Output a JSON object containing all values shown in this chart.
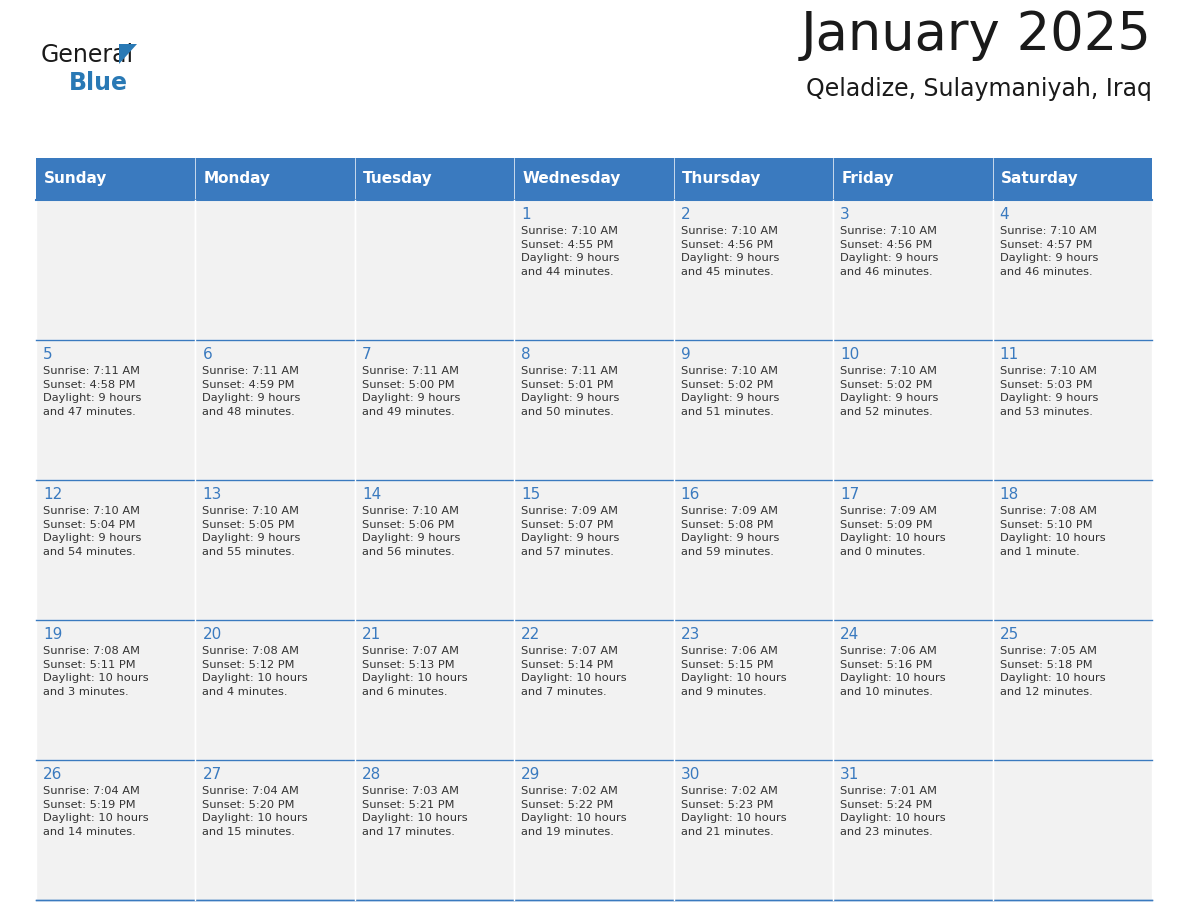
{
  "title": "January 2025",
  "subtitle": "Qeladize, Sulaymaniyah, Iraq",
  "header_color": "#3a7abf",
  "header_text_color": "#ffffff",
  "cell_bg_color": "#f2f2f2",
  "day_names": [
    "Sunday",
    "Monday",
    "Tuesday",
    "Wednesday",
    "Thursday",
    "Friday",
    "Saturday"
  ],
  "title_color": "#1a1a1a",
  "subtitle_color": "#1a1a1a",
  "text_color": "#333333",
  "day_num_color": "#3a7abf",
  "line_color": "#3a7abf",
  "logo_text_color": "#1a1a1a",
  "logo_blue_color": "#2979b5",
  "calendar": [
    [
      {
        "day": "",
        "info": ""
      },
      {
        "day": "",
        "info": ""
      },
      {
        "day": "",
        "info": ""
      },
      {
        "day": "1",
        "info": "Sunrise: 7:10 AM\nSunset: 4:55 PM\nDaylight: 9 hours\nand 44 minutes."
      },
      {
        "day": "2",
        "info": "Sunrise: 7:10 AM\nSunset: 4:56 PM\nDaylight: 9 hours\nand 45 minutes."
      },
      {
        "day": "3",
        "info": "Sunrise: 7:10 AM\nSunset: 4:56 PM\nDaylight: 9 hours\nand 46 minutes."
      },
      {
        "day": "4",
        "info": "Sunrise: 7:10 AM\nSunset: 4:57 PM\nDaylight: 9 hours\nand 46 minutes."
      }
    ],
    [
      {
        "day": "5",
        "info": "Sunrise: 7:11 AM\nSunset: 4:58 PM\nDaylight: 9 hours\nand 47 minutes."
      },
      {
        "day": "6",
        "info": "Sunrise: 7:11 AM\nSunset: 4:59 PM\nDaylight: 9 hours\nand 48 minutes."
      },
      {
        "day": "7",
        "info": "Sunrise: 7:11 AM\nSunset: 5:00 PM\nDaylight: 9 hours\nand 49 minutes."
      },
      {
        "day": "8",
        "info": "Sunrise: 7:11 AM\nSunset: 5:01 PM\nDaylight: 9 hours\nand 50 minutes."
      },
      {
        "day": "9",
        "info": "Sunrise: 7:10 AM\nSunset: 5:02 PM\nDaylight: 9 hours\nand 51 minutes."
      },
      {
        "day": "10",
        "info": "Sunrise: 7:10 AM\nSunset: 5:02 PM\nDaylight: 9 hours\nand 52 minutes."
      },
      {
        "day": "11",
        "info": "Sunrise: 7:10 AM\nSunset: 5:03 PM\nDaylight: 9 hours\nand 53 minutes."
      }
    ],
    [
      {
        "day": "12",
        "info": "Sunrise: 7:10 AM\nSunset: 5:04 PM\nDaylight: 9 hours\nand 54 minutes."
      },
      {
        "day": "13",
        "info": "Sunrise: 7:10 AM\nSunset: 5:05 PM\nDaylight: 9 hours\nand 55 minutes."
      },
      {
        "day": "14",
        "info": "Sunrise: 7:10 AM\nSunset: 5:06 PM\nDaylight: 9 hours\nand 56 minutes."
      },
      {
        "day": "15",
        "info": "Sunrise: 7:09 AM\nSunset: 5:07 PM\nDaylight: 9 hours\nand 57 minutes."
      },
      {
        "day": "16",
        "info": "Sunrise: 7:09 AM\nSunset: 5:08 PM\nDaylight: 9 hours\nand 59 minutes."
      },
      {
        "day": "17",
        "info": "Sunrise: 7:09 AM\nSunset: 5:09 PM\nDaylight: 10 hours\nand 0 minutes."
      },
      {
        "day": "18",
        "info": "Sunrise: 7:08 AM\nSunset: 5:10 PM\nDaylight: 10 hours\nand 1 minute."
      }
    ],
    [
      {
        "day": "19",
        "info": "Sunrise: 7:08 AM\nSunset: 5:11 PM\nDaylight: 10 hours\nand 3 minutes."
      },
      {
        "day": "20",
        "info": "Sunrise: 7:08 AM\nSunset: 5:12 PM\nDaylight: 10 hours\nand 4 minutes."
      },
      {
        "day": "21",
        "info": "Sunrise: 7:07 AM\nSunset: 5:13 PM\nDaylight: 10 hours\nand 6 minutes."
      },
      {
        "day": "22",
        "info": "Sunrise: 7:07 AM\nSunset: 5:14 PM\nDaylight: 10 hours\nand 7 minutes."
      },
      {
        "day": "23",
        "info": "Sunrise: 7:06 AM\nSunset: 5:15 PM\nDaylight: 10 hours\nand 9 minutes."
      },
      {
        "day": "24",
        "info": "Sunrise: 7:06 AM\nSunset: 5:16 PM\nDaylight: 10 hours\nand 10 minutes."
      },
      {
        "day": "25",
        "info": "Sunrise: 7:05 AM\nSunset: 5:18 PM\nDaylight: 10 hours\nand 12 minutes."
      }
    ],
    [
      {
        "day": "26",
        "info": "Sunrise: 7:04 AM\nSunset: 5:19 PM\nDaylight: 10 hours\nand 14 minutes."
      },
      {
        "day": "27",
        "info": "Sunrise: 7:04 AM\nSunset: 5:20 PM\nDaylight: 10 hours\nand 15 minutes."
      },
      {
        "day": "28",
        "info": "Sunrise: 7:03 AM\nSunset: 5:21 PM\nDaylight: 10 hours\nand 17 minutes."
      },
      {
        "day": "29",
        "info": "Sunrise: 7:02 AM\nSunset: 5:22 PM\nDaylight: 10 hours\nand 19 minutes."
      },
      {
        "day": "30",
        "info": "Sunrise: 7:02 AM\nSunset: 5:23 PM\nDaylight: 10 hours\nand 21 minutes."
      },
      {
        "day": "31",
        "info": "Sunrise: 7:01 AM\nSunset: 5:24 PM\nDaylight: 10 hours\nand 23 minutes."
      },
      {
        "day": "",
        "info": ""
      }
    ]
  ]
}
